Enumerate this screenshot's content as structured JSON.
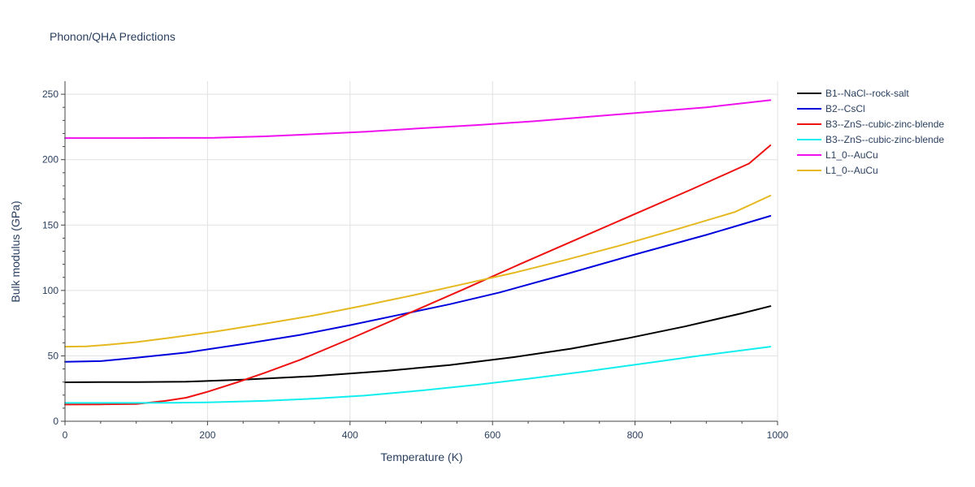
{
  "chart_data": {
    "type": "line",
    "title": "Phonon/QHA Predictions",
    "xlabel": "Temperature (K)",
    "ylabel": "Bulk modulus (GPa)",
    "xlim": [
      0,
      1000
    ],
    "ylim": [
      0,
      260
    ],
    "x_ticks": [
      0,
      200,
      400,
      600,
      800,
      1000
    ],
    "y_ticks": [
      0,
      50,
      100,
      150,
      200,
      250
    ],
    "grid": true,
    "legend_position": "right",
    "series": [
      {
        "name": "B1--NaCl--rock-salt",
        "color": "#000000",
        "x": [
          0,
          50,
          100,
          170,
          250,
          350,
          450,
          540,
          630,
          710,
          790,
          870,
          950,
          990
        ],
        "y": [
          29.8,
          29.9,
          30.0,
          30.3,
          31.8,
          34.5,
          38.5,
          43.0,
          49.0,
          55.5,
          63.5,
          72.5,
          82.5,
          88.0
        ]
      },
      {
        "name": "B2--CsCl",
        "color": "#0000dd",
        "x": [
          0,
          50,
          100,
          170,
          250,
          330,
          400,
          470,
          540,
          610,
          700,
          800,
          900,
          990
        ],
        "y": [
          45.5,
          46.0,
          48.5,
          52.5,
          59.0,
          66.0,
          73.5,
          81.5,
          89.5,
          98.5,
          112.0,
          127.5,
          142.5,
          157.0
        ]
      },
      {
        "name": "B3--ZnS--cubic-zinc-blende",
        "color": "#ee1111",
        "x": [
          0,
          50,
          100,
          140,
          170,
          200,
          240,
          280,
          330,
          400,
          480,
          560,
          640,
          720,
          800,
          880,
          960,
          990
        ],
        "y": [
          12.8,
          12.9,
          13.2,
          15.5,
          18.0,
          22.5,
          29.5,
          37.0,
          47.0,
          63.0,
          82.0,
          101.0,
          120.5,
          139.5,
          158.5,
          177.5,
          197.0,
          211.0
        ]
      },
      {
        "name": "B3--ZnS--cubic-zinc-blende",
        "color": "#11eeee",
        "x": [
          0,
          50,
          100,
          150,
          200,
          280,
          350,
          420,
          500,
          580,
          650,
          730,
          810,
          890,
          990
        ],
        "y": [
          14.0,
          14.0,
          14.0,
          14.1,
          14.4,
          15.6,
          17.3,
          19.6,
          23.5,
          28.0,
          32.5,
          38.0,
          44.0,
          50.0,
          57.0
        ]
      },
      {
        "name": "L1_0--AuCu",
        "color": "#ee11ee",
        "x": [
          0,
          50,
          100,
          150,
          210,
          280,
          350,
          420,
          500,
          580,
          660,
          740,
          820,
          900,
          990
        ],
        "y": [
          216.5,
          216.5,
          216.5,
          216.6,
          216.7,
          217.8,
          219.5,
          221.3,
          224.0,
          226.5,
          229.5,
          233.0,
          236.5,
          240.0,
          245.5
        ]
      },
      {
        "name": "L1_0--AuCu",
        "color": "#e6b820",
        "x": [
          0,
          30,
          60,
          100,
          150,
          210,
          280,
          350,
          420,
          490,
          560,
          630,
          700,
          780,
          860,
          940,
          990
        ],
        "y": [
          57.0,
          57.2,
          58.5,
          60.5,
          64.0,
          68.5,
          74.5,
          81.0,
          88.5,
          96.5,
          105.0,
          113.5,
          123.0,
          134.5,
          147.0,
          160.0,
          172.5
        ]
      }
    ]
  }
}
